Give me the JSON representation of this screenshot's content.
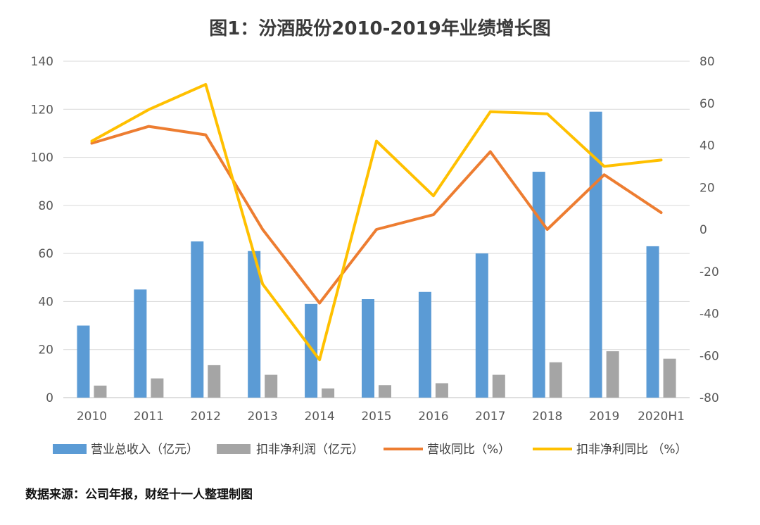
{
  "title": "图1：汾酒股份2010-2019年业绩增长图",
  "source": "数据来源：公司年报，财经十一人整理制图",
  "chart_data": {
    "type": "bar",
    "categories": [
      "2010",
      "2011",
      "2012",
      "2013",
      "2014",
      "2015",
      "2016",
      "2017",
      "2018",
      "2019",
      "2020H1"
    ],
    "y_left": {
      "min": 0,
      "max": 140,
      "step": 20
    },
    "y_right": {
      "min": -80,
      "max": 80,
      "step": 20
    },
    "grid": true,
    "legend_position": "bottom",
    "series": [
      {
        "name": "营业总收入（亿元）",
        "type": "bar",
        "axis": "left",
        "color": "#5b9bd5",
        "values": [
          30,
          45,
          65,
          61,
          39,
          41,
          44,
          60,
          94,
          119,
          63
        ]
      },
      {
        "name": "扣非净利润（亿元）",
        "type": "bar",
        "axis": "left",
        "color": "#a5a5a5",
        "values": [
          5,
          8,
          13.5,
          9.5,
          3.8,
          5.2,
          6,
          9.5,
          14.7,
          19.3,
          16.2
        ]
      },
      {
        "name": "营收同比（%）",
        "type": "line",
        "axis": "right",
        "color": "#ed7d31",
        "values": [
          41,
          49,
          45,
          0,
          -35,
          0,
          7,
          37,
          0,
          26,
          8
        ]
      },
      {
        "name": "扣非净利同比 （%）",
        "type": "line",
        "axis": "right",
        "color": "#ffc000",
        "values": [
          42,
          57,
          69,
          -26,
          -62,
          42,
          16,
          56,
          55,
          30,
          33
        ]
      }
    ]
  }
}
